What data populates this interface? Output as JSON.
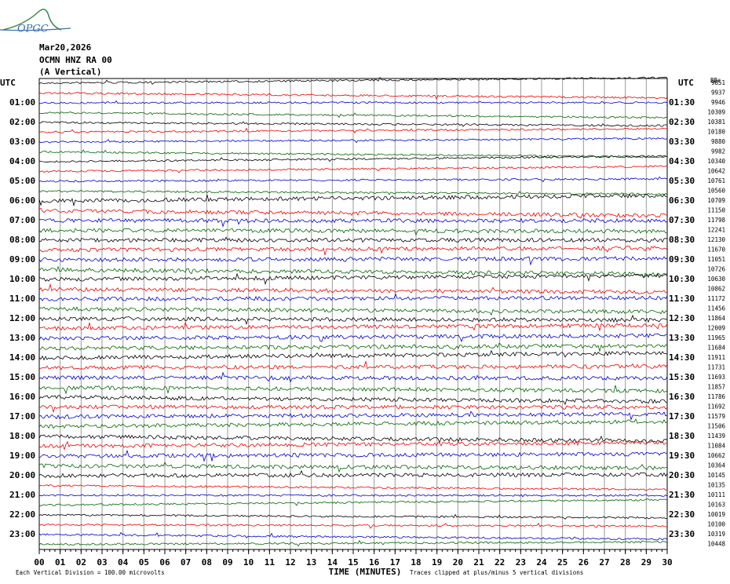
{
  "logo": "OPGC",
  "header": {
    "date": "Mar20,2026",
    "station": "OCMN HNZ RA 00",
    "component": "(A Vertical)"
  },
  "left_axis": {
    "title": "UTC",
    "labels": [
      "01:00",
      "02:00",
      "03:00",
      "04:00",
      "05:00",
      "06:00",
      "07:00",
      "08:00",
      "09:00",
      "10:00",
      "11:00",
      "12:00",
      "13:00",
      "14:00",
      "15:00",
      "16:00",
      "17:00",
      "18:00",
      "19:00",
      "20:00",
      "21:00",
      "22:00",
      "23:00"
    ]
  },
  "right_axis": {
    "title": "UTC",
    "corner_label": "BBc",
    "labels": [
      "01:30",
      "02:30",
      "03:30",
      "04:30",
      "05:30",
      "06:30",
      "07:30",
      "08:30",
      "09:30",
      "10:30",
      "11:30",
      "12:30",
      "13:30",
      "14:30",
      "15:30",
      "16:30",
      "17:30",
      "18:30",
      "19:30",
      "20:30",
      "21:30",
      "22:30",
      "23:30"
    ],
    "offsets": [
      9851,
      9937,
      9946,
      10309,
      10381,
      10180,
      9880,
      9982,
      10340,
      10642,
      10761,
      10560,
      10709,
      11150,
      11798,
      12241,
      12130,
      11670,
      11051,
      10726,
      10630,
      10862,
      11172,
      11456,
      11864,
      12009,
      11965,
      11684,
      11911,
      11731,
      11693,
      11857,
      11786,
      11692,
      11579,
      11506,
      11439,
      11084,
      10662,
      10364,
      10145,
      10135,
      10111,
      10163,
      10019,
      10100,
      10319,
      10448
    ]
  },
  "x_axis": {
    "title": "TIME (MINUTES)",
    "labels": [
      "00",
      "01",
      "02",
      "03",
      "04",
      "05",
      "06",
      "07",
      "08",
      "09",
      "10",
      "11",
      "12",
      "13",
      "14",
      "15",
      "16",
      "17",
      "18",
      "19",
      "20",
      "21",
      "22",
      "23",
      "24",
      "25",
      "26",
      "27",
      "28",
      "29",
      "30"
    ]
  },
  "footer": {
    "scale_note": "Each Vertical Division =  100.00 microvolts",
    "clip_note": "Traces clipped at plus/minus 5 vertical divisions"
  }
}
